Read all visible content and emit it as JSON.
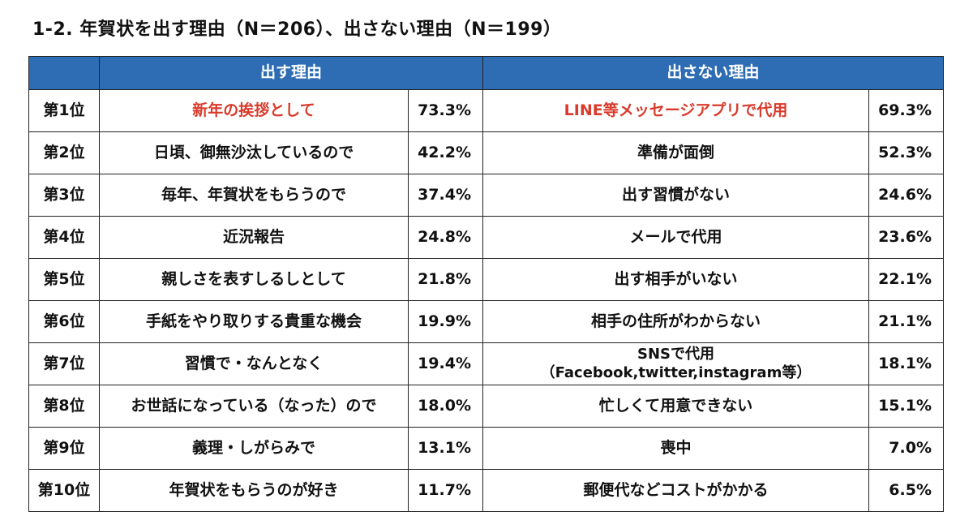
{
  "title": "1-2. 年賀状を出す理由（N＝206）、出さない理由（N＝199）",
  "headers": {
    "corner": "",
    "reasons_send": "出す理由",
    "reasons_not_send": "出さない理由"
  },
  "rows": [
    {
      "rank": "第1位",
      "send": "新年の挨拶として",
      "send_pct": "73.3%",
      "not_send": "LINE等メッセージアプリで代用",
      "not_send_pct": "69.3%"
    },
    {
      "rank": "第2位",
      "send": "日頃、御無沙汰しているので",
      "send_pct": "42.2%",
      "not_send": "準備が面倒",
      "not_send_pct": "52.3%"
    },
    {
      "rank": "第3位",
      "send": "毎年、年賀状をもらうので",
      "send_pct": "37.4%",
      "not_send": "出す習慣がない",
      "not_send_pct": "24.6%"
    },
    {
      "rank": "第4位",
      "send": "近況報告",
      "send_pct": "24.8%",
      "not_send": "メールで代用",
      "not_send_pct": "23.6%"
    },
    {
      "rank": "第5位",
      "send": "親しさを表すしるしとして",
      "send_pct": "21.8%",
      "not_send": "出す相手がいない",
      "not_send_pct": "22.1%"
    },
    {
      "rank": "第6位",
      "send": "手紙をやり取りする貴重な機会",
      "send_pct": "19.9%",
      "not_send": "相手の住所がわからない",
      "not_send_pct": "21.1%"
    },
    {
      "rank": "第7位",
      "send": "習慣で・なんとなく",
      "send_pct": "19.4%",
      "not_send": "SNSで代用",
      "not_send_sub": "（Facebook,twitter,instagram等）",
      "not_send_pct": "18.1%"
    },
    {
      "rank": "第8位",
      "send": "お世話になっている（なった）ので",
      "send_pct": "18.0%",
      "not_send": "忙しくて用意できない",
      "not_send_pct": "15.1%"
    },
    {
      "rank": "第9位",
      "send": "義理・しがらみで",
      "send_pct": "13.1%",
      "not_send": "喪中",
      "not_send_pct": "7.0%"
    },
    {
      "rank": "第10位",
      "send": "年賀状をもらうのが好き",
      "send_pct": "11.7%",
      "not_send": "郵便代などコストがかかる",
      "not_send_pct": "6.5%"
    }
  ],
  "colors": {
    "header_bg": "#2e6db4",
    "highlight_text": "#d93a2b"
  }
}
